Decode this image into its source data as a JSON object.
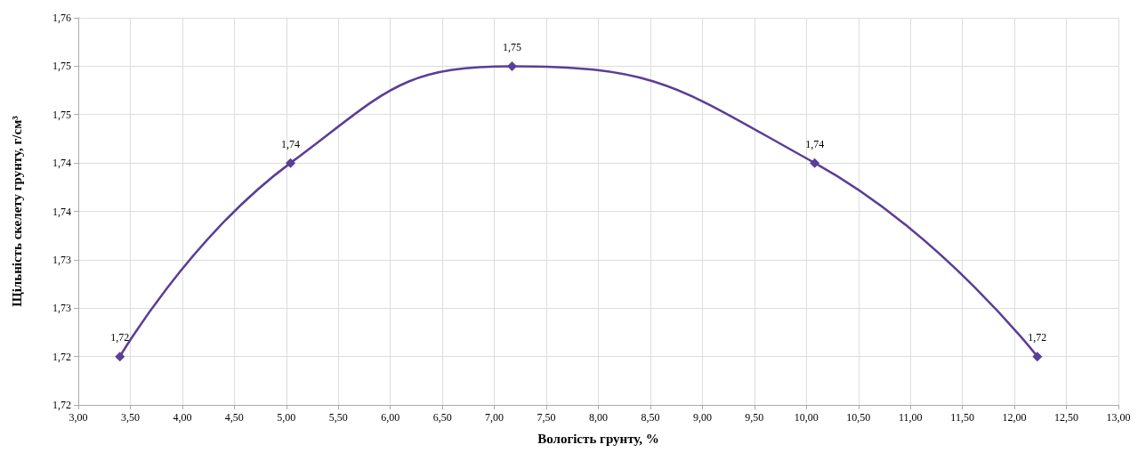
{
  "chart_data": {
    "type": "line",
    "xlabel": "Вологість грунту, %",
    "ylabel": "Щільність скелету грунту, г/см³",
    "x": [
      3.4,
      5.04,
      7.17,
      10.08,
      12.22
    ],
    "series": [
      {
        "color": "#5a3e97",
        "values": [
          1.72,
          1.74,
          1.75,
          1.74,
          1.72
        ]
      }
    ],
    "xlim": [
      3,
      13
    ],
    "xticks": [
      {
        "value": 3,
        "label": "3,00"
      },
      {
        "value": 3.5,
        "label": "3,50"
      },
      {
        "value": 4,
        "label": "4,00"
      },
      {
        "value": 4.5,
        "label": "4,50"
      },
      {
        "value": 5,
        "label": "5,00"
      },
      {
        "value": 5.5,
        "label": "5,50"
      },
      {
        "value": 6,
        "label": "6,00"
      },
      {
        "value": 6.5,
        "label": "6,50"
      },
      {
        "value": 7,
        "label": "7,00"
      },
      {
        "value": 7.5,
        "label": "7,50"
      },
      {
        "value": 8,
        "label": "8,00"
      },
      {
        "value": 8.5,
        "label": "8,50"
      },
      {
        "value": 9,
        "label": "9,00"
      },
      {
        "value": 9.5,
        "label": "9,50"
      },
      {
        "value": 10,
        "label": "10,00"
      },
      {
        "value": 10.5,
        "label": "10,50"
      },
      {
        "value": 11,
        "label": "11,00"
      },
      {
        "value": 11.5,
        "label": "11,50"
      },
      {
        "value": 12,
        "label": "12,00"
      },
      {
        "value": 12.5,
        "label": "12,50"
      },
      {
        "value": 13,
        "label": "13,00"
      }
    ],
    "ylim": [
      1.715,
      1.755
    ],
    "yticks": [
      {
        "value": 1.715,
        "label": "1,72"
      },
      {
        "value": 1.72,
        "label": "1,72"
      },
      {
        "value": 1.725,
        "label": "1,73"
      },
      {
        "value": 1.73,
        "label": "1,73"
      },
      {
        "value": 1.735,
        "label": "1,74"
      },
      {
        "value": 1.74,
        "label": "1,74"
      },
      {
        "value": 1.745,
        "label": "1,75"
      },
      {
        "value": 1.75,
        "label": "1,75"
      },
      {
        "value": 1.755,
        "label": "1,76"
      }
    ],
    "value_labels": [
      "1,72",
      "1,74",
      "1,75",
      "1,74",
      "1,72"
    ],
    "grid": true,
    "marker": "diamond",
    "line_style": "solid"
  }
}
